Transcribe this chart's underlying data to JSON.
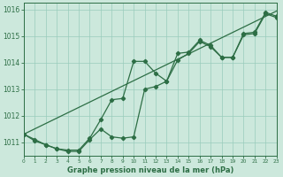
{
  "title": "Graphe pression niveau de la mer (hPa)",
  "bg_color": "#cce8dc",
  "grid_color": "#99ccbb",
  "line_color": "#2d6e45",
  "x_min": 0,
  "x_max": 23,
  "y_min": 1010.5,
  "y_max": 1016.25,
  "series1_x": [
    0,
    1,
    2,
    3,
    4,
    5,
    6,
    7,
    8,
    9,
    10,
    11,
    12,
    13,
    14,
    15,
    16,
    17,
    18,
    19,
    20,
    21,
    22,
    23
  ],
  "series1_y": [
    1011.3,
    1011.1,
    1010.9,
    1010.75,
    1010.7,
    1010.7,
    1011.15,
    1011.85,
    1012.6,
    1012.65,
    1014.05,
    1014.05,
    1013.6,
    1013.3,
    1014.35,
    1014.4,
    1014.85,
    1014.65,
    1014.2,
    1014.2,
    1015.1,
    1015.15,
    1015.9,
    1015.75
  ],
  "series2_x": [
    0,
    1,
    2,
    3,
    4,
    5,
    6,
    7,
    8,
    9,
    10,
    11,
    12,
    13,
    14,
    15,
    16,
    17,
    18,
    19,
    20,
    21,
    22,
    23
  ],
  "series2_y": [
    1011.3,
    1011.05,
    1010.9,
    1010.75,
    1010.65,
    1010.65,
    1011.1,
    1011.5,
    1011.2,
    1011.15,
    1011.2,
    1013.0,
    1013.1,
    1013.3,
    1014.1,
    1014.35,
    1014.8,
    1014.6,
    1014.2,
    1014.2,
    1015.05,
    1015.1,
    1015.85,
    1015.7
  ],
  "trend_x": [
    0,
    23
  ],
  "trend_y": [
    1011.3,
    1015.95
  ],
  "y_ticks": [
    1011,
    1012,
    1013,
    1014,
    1015,
    1016
  ]
}
